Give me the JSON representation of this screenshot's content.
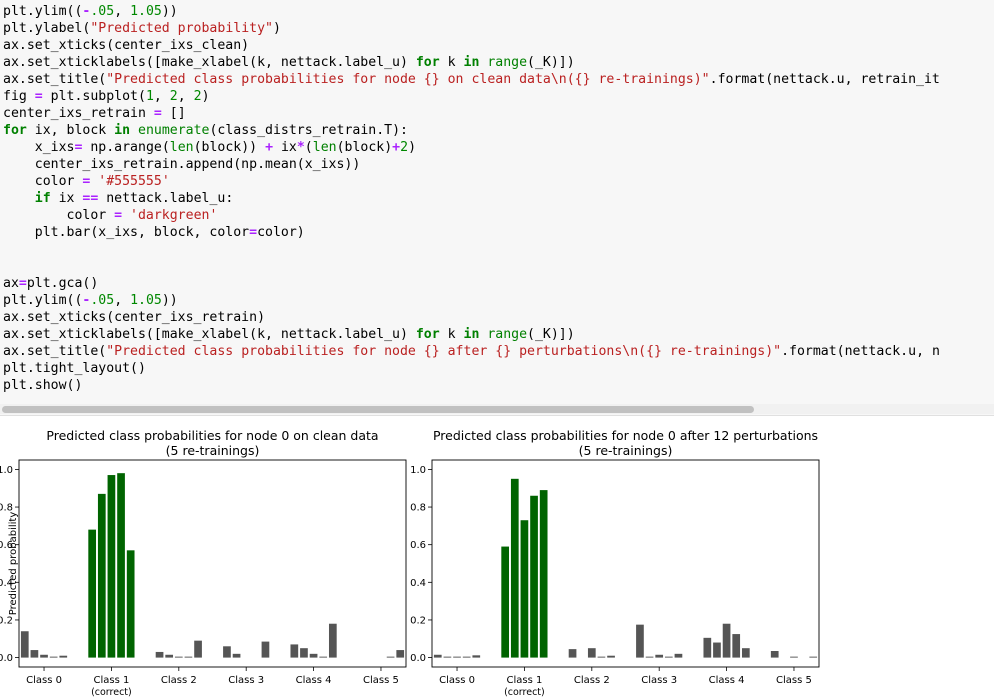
{
  "code_lines": [
    [
      [
        "",
        "plt.ylim(("
      ],
      [
        "op",
        "-"
      ],
      [
        "nm",
        ".05"
      ],
      [
        "",
        ", "
      ],
      [
        "nm",
        "1.05"
      ],
      [
        "",
        "))"
      ]
    ],
    [
      [
        "",
        "plt.ylabel("
      ],
      [
        "st",
        "\"Predicted probability\""
      ],
      [
        "",
        ")"
      ]
    ],
    [
      [
        "",
        "ax.set_xticks(center_ixs_clean)"
      ]
    ],
    [
      [
        "",
        "ax.set_xticklabels([make_xlabel(k, nettack.label_u) "
      ],
      [
        "kw",
        "for"
      ],
      [
        "",
        " k "
      ],
      [
        "kw",
        "in"
      ],
      [
        "",
        ""
      ],
      [
        "bi",
        " range"
      ],
      [
        "",
        "(_K)])"
      ]
    ],
    [
      [
        "",
        "ax.set_title("
      ],
      [
        "st",
        "\"Predicted class probabilities for node {} on clean data\\n({} re-trainings)\""
      ],
      [
        "",
        ".format(nettack.u, retrain_it"
      ]
    ],
    [
      [
        "",
        "fig "
      ],
      [
        "op",
        "="
      ],
      [
        "",
        " plt.subplot("
      ],
      [
        "nm",
        "1"
      ],
      [
        "",
        ", "
      ],
      [
        "nm",
        "2"
      ],
      [
        "",
        ", "
      ],
      [
        "nm",
        "2"
      ],
      [
        "",
        ")"
      ]
    ],
    [
      [
        "",
        "center_ixs_retrain "
      ],
      [
        "op",
        "="
      ],
      [
        "",
        " []"
      ]
    ],
    [
      [
        "kw",
        "for"
      ],
      [
        "",
        " ix, block "
      ],
      [
        "kw",
        "in"
      ],
      [
        "",
        ""
      ],
      [
        "bi",
        " enumerate"
      ],
      [
        "",
        "(class_distrs_retrain.T):"
      ]
    ],
    [
      [
        "",
        "    x_ixs"
      ],
      [
        "op",
        "="
      ],
      [
        "",
        " np.arange("
      ],
      [
        "bi",
        "len"
      ],
      [
        "",
        "(block)) "
      ],
      [
        "op",
        "+"
      ],
      [
        "",
        " ix"
      ],
      [
        "op",
        "*"
      ],
      [
        "",
        "("
      ],
      [
        "bi",
        "len"
      ],
      [
        "",
        "(block)"
      ],
      [
        "op",
        "+"
      ],
      [
        "nm",
        "2"
      ],
      [
        "",
        ")"
      ]
    ],
    [
      [
        "",
        "    center_ixs_retrain.append(np.mean(x_ixs))"
      ]
    ],
    [
      [
        "",
        "    color "
      ],
      [
        "op",
        "="
      ],
      [
        "",
        ""
      ],
      [
        "st",
        " '#555555'"
      ]
    ],
    [
      [
        "kw",
        "    if"
      ],
      [
        "",
        " ix "
      ],
      [
        "op",
        "=="
      ],
      [
        "",
        " nettack.label_u:"
      ]
    ],
    [
      [
        "",
        "        color "
      ],
      [
        "op",
        "="
      ],
      [
        "",
        ""
      ],
      [
        "st",
        " 'darkgreen'"
      ]
    ],
    [
      [
        "",
        "    plt.bar(x_ixs, block, color"
      ],
      [
        "op",
        "="
      ],
      [
        "",
        "color)"
      ]
    ],
    [
      [
        "",
        ""
      ]
    ],
    [
      [
        "",
        ""
      ]
    ],
    [
      [
        "",
        "ax"
      ],
      [
        "op",
        "="
      ],
      [
        "",
        "plt.gca()"
      ]
    ],
    [
      [
        "",
        "plt.ylim(("
      ],
      [
        "op",
        "-"
      ],
      [
        "nm",
        ".05"
      ],
      [
        "",
        ", "
      ],
      [
        "nm",
        "1.05"
      ],
      [
        "",
        "))"
      ]
    ],
    [
      [
        "",
        "ax.set_xticks(center_ixs_retrain)"
      ]
    ],
    [
      [
        "",
        "ax.set_xticklabels([make_xlabel(k, nettack.label_u) "
      ],
      [
        "kw",
        "for"
      ],
      [
        "",
        " k "
      ],
      [
        "kw",
        "in"
      ],
      [
        "",
        ""
      ],
      [
        "bi",
        " range"
      ],
      [
        "",
        "(_K)])"
      ]
    ],
    [
      [
        "",
        "ax.set_title("
      ],
      [
        "st",
        "\"Predicted class probabilities for node {} after {} perturbations\\n({} re-trainings)\""
      ],
      [
        "",
        ".format(nettack.u, n"
      ]
    ],
    [
      [
        "",
        "plt.tight_layout()"
      ]
    ],
    [
      [
        "",
        "plt.show()"
      ]
    ]
  ],
  "colors": {
    "target_bar": "#006400",
    "other_bar": "#555555"
  },
  "chart_data": [
    {
      "type": "bar",
      "title": "Predicted class probabilities for node 0 on clean data\n(5 re-trainings)",
      "ylabel": "Predicted probability",
      "ylim": [
        -0.05,
        1.05
      ],
      "yticks": [
        "0.0",
        "0.2",
        "0.4",
        "0.6",
        "0.8",
        "1.0"
      ],
      "categories": [
        "Class 0",
        "Class 1\n(correct)",
        "Class 2",
        "Class 3",
        "Class 4",
        "Class 5"
      ],
      "highlight_category": 1,
      "groups": [
        [
          0.14,
          0.04,
          0.015,
          0.005,
          0.01
        ],
        [
          0.68,
          0.87,
          0.97,
          0.98,
          0.57
        ],
        [
          0.03,
          0.015,
          0.005,
          0.005,
          0.09
        ],
        [
          0.06,
          0.02,
          0.0,
          0.0,
          0.085
        ],
        [
          0.07,
          0.05,
          0.02,
          0.005,
          0.18
        ],
        [
          0.0,
          0.0,
          0.0,
          0.005,
          0.04
        ]
      ]
    },
    {
      "type": "bar",
      "title": "Predicted class probabilities for node 0 after 12 perturbations\n(5 re-trainings)",
      "ylabel": "",
      "ylim": [
        -0.05,
        1.05
      ],
      "yticks": [
        "0.0",
        "0.2",
        "0.4",
        "0.6",
        "0.8",
        "1.0"
      ],
      "categories": [
        "Class 0",
        "Class 1\n(correct)",
        "Class 2",
        "Class 3",
        "Class 4",
        "Class 5"
      ],
      "highlight_category": 1,
      "groups": [
        [
          0.015,
          0.005,
          0.005,
          0.005,
          0.012
        ],
        [
          0.59,
          0.95,
          0.73,
          0.86,
          0.89
        ],
        [
          0.045,
          0.0,
          0.05,
          0.005,
          0.01
        ],
        [
          0.175,
          0.005,
          0.015,
          0.005,
          0.02
        ],
        [
          0.105,
          0.08,
          0.18,
          0.125,
          0.05
        ],
        [
          0.035,
          0.0,
          0.005,
          0.0,
          0.005
        ]
      ]
    }
  ]
}
